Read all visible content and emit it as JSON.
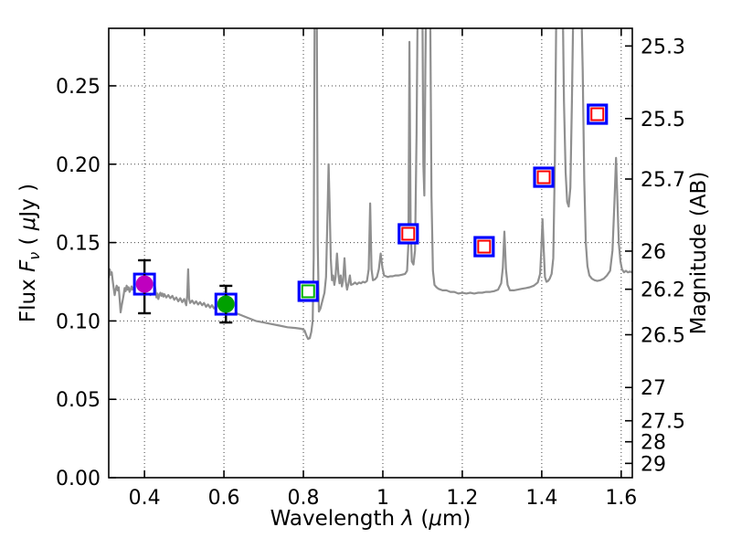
{
  "chart_data": {
    "type": "line",
    "title": "",
    "background": "#ffffff",
    "grid": true,
    "grid_style": "dotted",
    "x_axis": {
      "label": "Wavelength λ (μm)",
      "label_parts": [
        "Wavelength ",
        "λ",
        " (",
        "μ",
        "m)"
      ],
      "range": [
        0.31,
        1.628
      ],
      "tick_values": [
        0.4,
        0.6,
        0.8,
        1.0,
        1.2,
        1.4,
        1.6
      ],
      "tick_labels": [
        "0.4",
        "0.6",
        "0.8",
        "1",
        "1.2",
        "1.4",
        "1.6"
      ]
    },
    "y_axis_left": {
      "label": "Flux Fν ( μJy )",
      "label_parts": [
        "Flux ",
        "F",
        "ν",
        " ( ",
        "μ",
        "Jy )"
      ],
      "range": [
        0.0,
        0.2867
      ],
      "tick_values": [
        0.0,
        0.05,
        0.1,
        0.15,
        0.2,
        0.25
      ],
      "tick_labels": [
        "0.00",
        "0.05",
        "0.10",
        "0.15",
        "0.20",
        "0.25"
      ]
    },
    "y_axis_right": {
      "label": "Magnitude (AB)",
      "tick_values": [
        25.3,
        25.5,
        25.7,
        26,
        26.2,
        26.5,
        27,
        27.5,
        28,
        29
      ],
      "tick_labels": [
        "25.3",
        "25.5",
        "25.7",
        "26",
        "26.2",
        "26.5",
        "27",
        "27.5",
        "28",
        "29"
      ],
      "ab_zeropoint_ujy": 23.9
    },
    "series": [
      {
        "name": "model-spectrum",
        "type": "line",
        "color": "#8f8f8f",
        "linewidth": 2.2,
        "points": [
          [
            0.31,
            0.1275
          ],
          [
            0.3125,
            0.133
          ],
          [
            0.315,
            0.1295
          ],
          [
            0.3175,
            0.131
          ],
          [
            0.32,
            0.126
          ],
          [
            0.3225,
            0.121
          ],
          [
            0.325,
            0.1165
          ],
          [
            0.3275,
            0.12
          ],
          [
            0.33,
            0.1225
          ],
          [
            0.3325,
            0.1195
          ],
          [
            0.335,
            0.1215
          ],
          [
            0.3375,
            0.1135
          ],
          [
            0.34,
            0.1055
          ],
          [
            0.3425,
            0.1095
          ],
          [
            0.345,
            0.113
          ],
          [
            0.3475,
            0.1165
          ],
          [
            0.35,
            0.121
          ],
          [
            0.3525,
            0.119
          ],
          [
            0.355,
            0.1225
          ],
          [
            0.3575,
            0.12
          ],
          [
            0.36,
            0.1215
          ],
          [
            0.3625,
            0.1185
          ],
          [
            0.365,
            0.12
          ],
          [
            0.3675,
            0.122
          ],
          [
            0.37,
            0.12
          ],
          [
            0.3725,
            0.1215
          ],
          [
            0.375,
            0.119
          ],
          [
            0.3775,
            0.121
          ],
          [
            0.38,
            0.1195
          ],
          [
            0.3825,
            0.1215
          ],
          [
            0.385,
            0.119
          ],
          [
            0.3875,
            0.117
          ],
          [
            0.39,
            0.12
          ],
          [
            0.3925,
            0.122
          ],
          [
            0.395,
            0.1205
          ],
          [
            0.3975,
            0.1215
          ],
          [
            0.4,
            0.119
          ],
          [
            0.4025,
            0.1205
          ],
          [
            0.405,
            0.118
          ],
          [
            0.4075,
            0.12
          ],
          [
            0.41,
            0.1215
          ],
          [
            0.4125,
            0.1185
          ],
          [
            0.415,
            0.1165
          ],
          [
            0.4175,
            0.119
          ],
          [
            0.42,
            0.1205
          ],
          [
            0.4225,
            0.118
          ],
          [
            0.425,
            0.124
          ],
          [
            0.4275,
            0.12
          ],
          [
            0.43,
            0.115
          ],
          [
            0.4325,
            0.1175
          ],
          [
            0.435,
            0.114
          ],
          [
            0.4375,
            0.1165
          ],
          [
            0.44,
            0.118
          ],
          [
            0.4425,
            0.116
          ],
          [
            0.445,
            0.1175
          ],
          [
            0.4475,
            0.1155
          ],
          [
            0.45,
            0.117
          ],
          [
            0.455,
            0.115
          ],
          [
            0.46,
            0.1165
          ],
          [
            0.465,
            0.1145
          ],
          [
            0.47,
            0.116
          ],
          [
            0.475,
            0.1135
          ],
          [
            0.48,
            0.115
          ],
          [
            0.485,
            0.1125
          ],
          [
            0.49,
            0.1145
          ],
          [
            0.495,
            0.112
          ],
          [
            0.5,
            0.114
          ],
          [
            0.505,
            0.11
          ],
          [
            0.5075,
            0.116
          ],
          [
            0.51,
            0.133
          ],
          [
            0.5125,
            0.114
          ],
          [
            0.515,
            0.1115
          ],
          [
            0.52,
            0.113
          ],
          [
            0.525,
            0.111
          ],
          [
            0.53,
            0.1125
          ],
          [
            0.535,
            0.1105
          ],
          [
            0.54,
            0.112
          ],
          [
            0.545,
            0.11
          ],
          [
            0.55,
            0.1115
          ],
          [
            0.555,
            0.109
          ],
          [
            0.56,
            0.1105
          ],
          [
            0.565,
            0.1085
          ],
          [
            0.57,
            0.11
          ],
          [
            0.575,
            0.108
          ],
          [
            0.58,
            0.1095
          ],
          [
            0.585,
            0.1075
          ],
          [
            0.59,
            0.1085
          ],
          [
            0.595,
            0.107
          ],
          [
            0.6,
            0.108
          ],
          [
            0.605,
            0.1075
          ],
          [
            0.61,
            0.107
          ],
          [
            0.615,
            0.1065
          ],
          [
            0.62,
            0.106
          ],
          [
            0.64,
            0.104
          ],
          [
            0.66,
            0.102
          ],
          [
            0.68,
            0.1
          ],
          [
            0.7,
            0.099
          ],
          [
            0.72,
            0.098
          ],
          [
            0.74,
            0.097
          ],
          [
            0.76,
            0.096
          ],
          [
            0.78,
            0.0955
          ],
          [
            0.795,
            0.095
          ],
          [
            0.803,
            0.094
          ],
          [
            0.808,
            0.0905
          ],
          [
            0.812,
            0.0885
          ],
          [
            0.816,
            0.089
          ],
          [
            0.82,
            0.093
          ],
          [
            0.8235,
            0.1
          ],
          [
            0.826,
            0.14
          ],
          [
            0.8285,
            0.31
          ],
          [
            0.8335,
            0.31
          ],
          [
            0.836,
            0.15
          ],
          [
            0.839,
            0.106
          ],
          [
            0.843,
            0.108
          ],
          [
            0.848,
            0.113
          ],
          [
            0.853,
            0.118
          ],
          [
            0.857,
            0.128
          ],
          [
            0.861,
            0.17
          ],
          [
            0.8635,
            0.2
          ],
          [
            0.866,
            0.175
          ],
          [
            0.869,
            0.14
          ],
          [
            0.872,
            0.126
          ],
          [
            0.875,
            0.129
          ],
          [
            0.878,
            0.123
          ],
          [
            0.881,
            0.128
          ],
          [
            0.8845,
            0.143
          ],
          [
            0.888,
            0.13
          ],
          [
            0.891,
            0.124
          ],
          [
            0.894,
            0.129
          ],
          [
            0.897,
            0.122
          ],
          [
            0.9,
            0.126
          ],
          [
            0.9035,
            0.14
          ],
          [
            0.907,
            0.125
          ],
          [
            0.91,
            0.12
          ],
          [
            0.9135,
            0.124
          ],
          [
            0.917,
            0.129
          ],
          [
            0.92,
            0.123
          ],
          [
            0.925,
            0.1235
          ],
          [
            0.93,
            0.1245
          ],
          [
            0.935,
            0.1235
          ],
          [
            0.94,
            0.1245
          ],
          [
            0.945,
            0.124
          ],
          [
            0.95,
            0.125
          ],
          [
            0.955,
            0.1245
          ],
          [
            0.96,
            0.1255
          ],
          [
            0.9645,
            0.133
          ],
          [
            0.968,
            0.175
          ],
          [
            0.9715,
            0.133
          ],
          [
            0.975,
            0.126
          ],
          [
            0.98,
            0.1265
          ],
          [
            0.985,
            0.128
          ],
          [
            0.99,
            0.133
          ],
          [
            0.9945,
            0.143
          ],
          [
            0.999,
            0.134
          ],
          [
            1.003,
            0.129
          ],
          [
            1.008,
            0.1285
          ],
          [
            1.013,
            0.128
          ],
          [
            1.018,
            0.1285
          ],
          [
            1.025,
            0.1285
          ],
          [
            1.032,
            0.129
          ],
          [
            1.04,
            0.129
          ],
          [
            1.048,
            0.1295
          ],
          [
            1.056,
            0.13
          ],
          [
            1.061,
            0.132
          ],
          [
            1.0645,
            0.15
          ],
          [
            1.067,
            0.278
          ],
          [
            1.07,
            0.16
          ],
          [
            1.073,
            0.138
          ],
          [
            1.077,
            0.136
          ],
          [
            1.081,
            0.145
          ],
          [
            1.085,
            0.22
          ],
          [
            1.088,
            0.31
          ],
          [
            1.0995,
            0.31
          ],
          [
            1.102,
            0.2
          ],
          [
            1.1045,
            0.18
          ],
          [
            1.107,
            0.26
          ],
          [
            1.109,
            0.31
          ],
          [
            1.119,
            0.31
          ],
          [
            1.1225,
            0.18
          ],
          [
            1.126,
            0.132
          ],
          [
            1.13,
            0.123
          ],
          [
            1.135,
            0.1215
          ],
          [
            1.14,
            0.1205
          ],
          [
            1.15,
            0.1195
          ],
          [
            1.16,
            0.1195
          ],
          [
            1.17,
            0.1185
          ],
          [
            1.18,
            0.1185
          ],
          [
            1.19,
            0.1175
          ],
          [
            1.2,
            0.118
          ],
          [
            1.21,
            0.1175
          ],
          [
            1.22,
            0.118
          ],
          [
            1.23,
            0.1175
          ],
          [
            1.24,
            0.118
          ],
          [
            1.25,
            0.118
          ],
          [
            1.26,
            0.1185
          ],
          [
            1.27,
            0.1185
          ],
          [
            1.28,
            0.119
          ],
          [
            1.29,
            0.12
          ],
          [
            1.298,
            0.124
          ],
          [
            1.302,
            0.134
          ],
          [
            1.306,
            0.157
          ],
          [
            1.31,
            0.133
          ],
          [
            1.314,
            0.123
          ],
          [
            1.32,
            0.1195
          ],
          [
            1.33,
            0.1195
          ],
          [
            1.34,
            0.12
          ],
          [
            1.35,
            0.1205
          ],
          [
            1.36,
            0.121
          ],
          [
            1.37,
            0.1215
          ],
          [
            1.38,
            0.1225
          ],
          [
            1.39,
            0.1245
          ],
          [
            1.396,
            0.13
          ],
          [
            1.399,
            0.145
          ],
          [
            1.402,
            0.165
          ],
          [
            1.405,
            0.145
          ],
          [
            1.408,
            0.128
          ],
          [
            1.412,
            0.125
          ],
          [
            1.416,
            0.1255
          ],
          [
            1.42,
            0.127
          ],
          [
            1.425,
            0.13
          ],
          [
            1.429,
            0.14
          ],
          [
            1.433,
            0.2
          ],
          [
            1.437,
            0.31
          ],
          [
            1.4525,
            0.31
          ],
          [
            1.456,
            0.24
          ],
          [
            1.46,
            0.195
          ],
          [
            1.464,
            0.176
          ],
          [
            1.468,
            0.173
          ],
          [
            1.472,
            0.185
          ],
          [
            1.476,
            0.24
          ],
          [
            1.48,
            0.31
          ],
          [
            1.499,
            0.31
          ],
          [
            1.503,
            0.26
          ],
          [
            1.507,
            0.19
          ],
          [
            1.511,
            0.15
          ],
          [
            1.515,
            0.135
          ],
          [
            1.52,
            0.129
          ],
          [
            1.526,
            0.127
          ],
          [
            1.533,
            0.126
          ],
          [
            1.54,
            0.1255
          ],
          [
            1.548,
            0.126
          ],
          [
            1.556,
            0.127
          ],
          [
            1.564,
            0.129
          ],
          [
            1.572,
            0.132
          ],
          [
            1.578,
            0.145
          ],
          [
            1.583,
            0.175
          ],
          [
            1.587,
            0.204
          ],
          [
            1.59,
            0.18
          ],
          [
            1.594,
            0.15
          ],
          [
            1.598,
            0.138
          ],
          [
            1.602,
            0.133
          ],
          [
            1.607,
            0.131
          ],
          [
            1.612,
            0.132
          ],
          [
            1.617,
            0.131
          ],
          [
            1.622,
            0.1315
          ],
          [
            1.628,
            0.131
          ]
        ]
      },
      {
        "name": "observed-photometry-filled",
        "type": "scatter",
        "marker": "circle-in-square",
        "points": [
          {
            "x": 0.4,
            "y": 0.1235,
            "yerr_plus": 0.0152,
            "yerr_minus": 0.0186,
            "circle_color": "#bf00bf",
            "square_color": "#0000ff"
          },
          {
            "x": 0.605,
            "y": 0.1107,
            "yerr_plus": 0.0117,
            "yerr_minus": 0.0117,
            "circle_color": "#00a000",
            "square_color": "#0000ff"
          }
        ]
      },
      {
        "name": "model-photometry-open-squares",
        "type": "scatter",
        "marker": "double-square",
        "points": [
          {
            "x": 0.812,
            "y": 0.1189,
            "inner_color": "#00b300",
            "outer_color": "#0000ff"
          },
          {
            "x": 1.064,
            "y": 0.1556,
            "inner_color": "#ff0000",
            "outer_color": "#0000ff"
          },
          {
            "x": 1.255,
            "y": 0.1474,
            "inner_color": "#ff0000",
            "outer_color": "#0000ff"
          },
          {
            "x": 1.405,
            "y": 0.1917,
            "inner_color": "#ff0000",
            "outer_color": "#0000ff"
          },
          {
            "x": 1.54,
            "y": 0.2319,
            "inner_color": "#ff0000",
            "outer_color": "#0000ff"
          }
        ]
      }
    ],
    "colors": {
      "spectrum": "#8f8f8f",
      "square_outer": "#0000ff",
      "square_inner_red": "#ff0000",
      "square_inner_green": "#00b300",
      "circle_magenta": "#bf00bf",
      "circle_green": "#00a000",
      "errorbar": "#000000",
      "axes": "#000000",
      "grid": "#444444"
    }
  }
}
